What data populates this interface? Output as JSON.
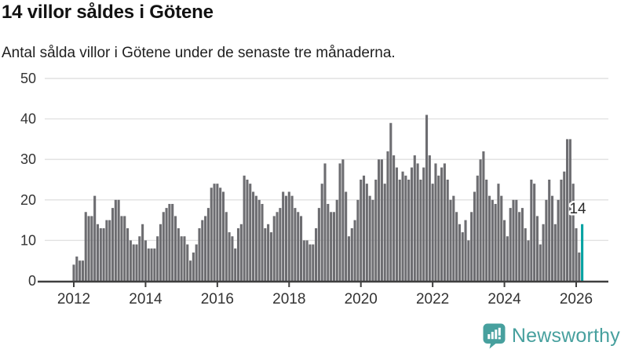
{
  "header": {
    "title": "14 villor såldes i Götene",
    "subtitle": "Antal sålda villor i Götene under de senaste tre månaderna."
  },
  "footer": {
    "brand": "Newsworthy"
  },
  "colors": {
    "bar": "#6d6d71",
    "highlight": "#00a2a2",
    "grid": "#e1e1e1",
    "axis": "#3f3f3f",
    "tick_label": "#333333",
    "annotation_text": "#2b2b2b",
    "annotation_halo": "#ffffff",
    "logo": "#47a09e"
  },
  "chart_data": {
    "type": "bar",
    "title": "14 villor såldes i Götene",
    "subtitle": "Antal sålda villor i Götene under de senaste tre månaderna.",
    "frequency": "monthly",
    "start": "2012-01",
    "end": "2026-03",
    "grid": "horizontal",
    "legend": "none",
    "ylim": [
      0,
      50
    ],
    "y_ticks": [
      0,
      10,
      20,
      30,
      40,
      50
    ],
    "x_tick_labels": [
      "2012",
      "2014",
      "2016",
      "2018",
      "2020",
      "2022",
      "2024",
      "2026"
    ],
    "values": [
      4,
      6,
      5,
      5,
      17,
      16,
      16,
      21,
      14,
      13,
      13,
      15,
      15,
      18,
      20,
      20,
      16,
      16,
      13,
      10,
      9,
      9,
      11,
      14,
      10,
      8,
      8,
      8,
      11,
      14,
      17,
      18,
      19,
      19,
      16,
      13,
      11,
      11,
      9,
      5,
      7,
      9,
      13,
      15,
      16,
      18,
      23,
      24,
      24,
      23,
      22,
      17,
      12,
      11,
      8,
      13,
      14,
      26,
      25,
      24,
      22,
      21,
      20,
      19,
      13,
      14,
      12,
      16,
      17,
      18,
      22,
      21,
      22,
      21,
      18,
      17,
      16,
      10,
      10,
      9,
      9,
      13,
      18,
      24,
      29,
      19,
      17,
      17,
      20,
      29,
      30,
      22,
      11,
      13,
      15,
      20,
      25,
      26,
      24,
      21,
      20,
      25,
      30,
      30,
      24,
      32,
      39,
      31,
      28,
      25,
      27,
      26,
      25,
      28,
      31,
      29,
      25,
      28,
      41,
      31,
      24,
      29,
      26,
      28,
      29,
      25,
      20,
      21,
      17,
      14,
      12,
      15,
      10,
      17,
      22,
      26,
      30,
      32,
      25,
      21,
      20,
      19,
      24,
      21,
      15,
      11,
      18,
      20,
      20,
      17,
      18,
      13,
      10,
      25,
      24,
      16,
      9,
      14,
      20,
      25,
      21,
      14,
      20,
      25,
      27,
      35,
      35,
      24,
      13,
      7,
      14
    ],
    "highlight": {
      "index": 170,
      "value": 14,
      "label": "14"
    }
  }
}
